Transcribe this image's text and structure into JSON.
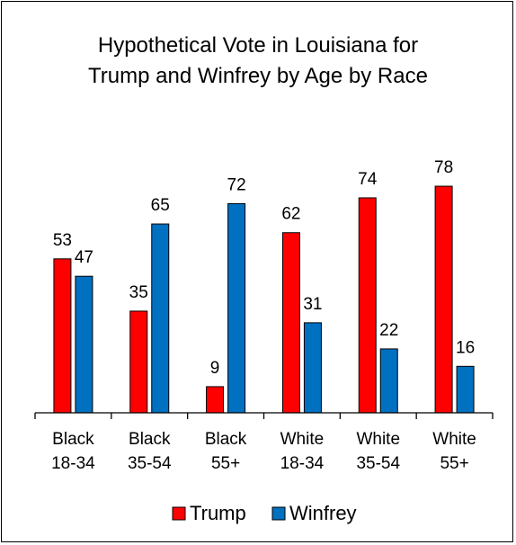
{
  "chart_data": {
    "type": "bar",
    "title": [
      "Hypothetical Vote in Louisiana for",
      "Trump and Winfrey by Age by Race"
    ],
    "categories": [
      [
        "Black",
        "18-34"
      ],
      [
        "Black",
        "35-54"
      ],
      [
        "Black",
        "55+"
      ],
      [
        "White",
        "18-34"
      ],
      [
        "White",
        "35-54"
      ],
      [
        "White",
        "55+"
      ]
    ],
    "series": [
      {
        "name": "Trump",
        "color": "#ff0000",
        "values": [
          53,
          35,
          9,
          62,
          74,
          78
        ]
      },
      {
        "name": "Winfrey",
        "color": "#0070c0",
        "values": [
          47,
          65,
          72,
          31,
          22,
          16
        ]
      }
    ],
    "ylim": [
      0,
      100
    ],
    "xlabel": "",
    "ylabel": "",
    "grid": false,
    "data_labels": true,
    "legend_position": "bottom"
  }
}
